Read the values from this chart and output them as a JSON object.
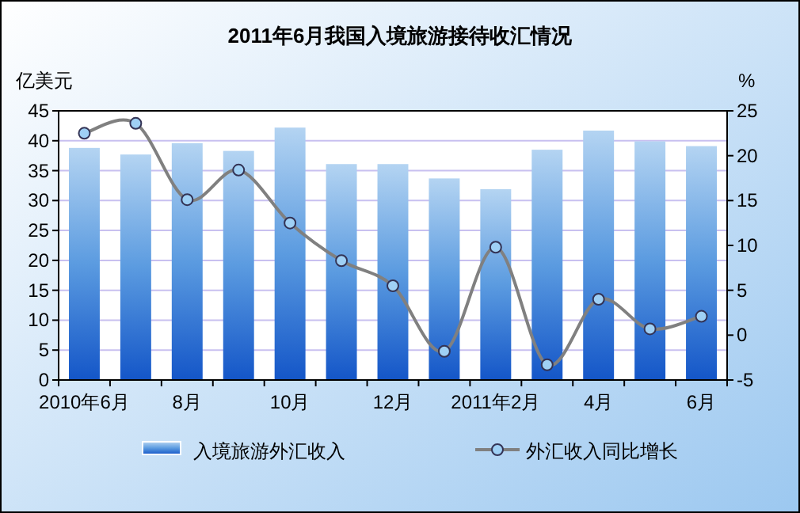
{
  "chart_data": {
    "type": "bar",
    "title": "2011年6月我国入境旅游接待收汇情况",
    "ylabel": "亿美元",
    "y2label": "%",
    "categories": [
      "2010年6月",
      null,
      "8月",
      null,
      "10月",
      null,
      "12月",
      null,
      "2011年2月",
      null,
      "4月",
      null,
      "6月"
    ],
    "series": [
      {
        "name": "入境旅游外汇收入",
        "color": "#5b9be0",
        "values": [
          38.8,
          37.7,
          39.6,
          38.3,
          42.2,
          36.1,
          36.1,
          33.7,
          31.9,
          38.5,
          41.7,
          39.9,
          39.1
        ]
      },
      {
        "name": "外汇收入同比增长",
        "type": "line",
        "axis": "y2",
        "color": "#808080",
        "marker": "circle",
        "values": [
          22.5,
          23.6,
          15.1,
          18.4,
          12.5,
          8.3,
          5.5,
          -1.8,
          9.8,
          -3.3,
          4.0,
          0.7,
          2.1
        ]
      }
    ],
    "ylim": [
      0,
      45
    ],
    "yticks": [
      0,
      5,
      10,
      15,
      20,
      25,
      30,
      35,
      40,
      45
    ],
    "y2lim": [
      -5,
      25
    ],
    "y2ticks": [
      -5,
      0,
      5,
      10,
      15,
      20,
      25
    ],
    "grid": "y",
    "legend": "bottom"
  }
}
